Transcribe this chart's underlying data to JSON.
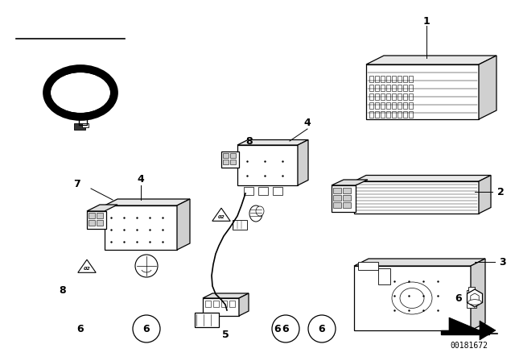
{
  "bg_color": "#ffffff",
  "line_color": "#000000",
  "fig_width": 6.4,
  "fig_height": 4.48,
  "dpi": 100,
  "part_number": "00181672"
}
